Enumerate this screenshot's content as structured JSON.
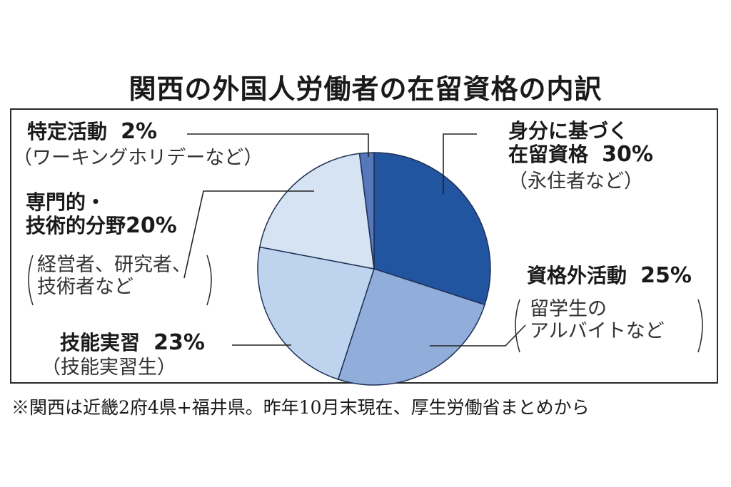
{
  "chart_data": {
    "type": "pie",
    "title": "関西の外国人労働者の在留資格の内訳",
    "unit": "%",
    "slices": [
      {
        "name": "身分に基づく在留資格",
        "label_lines": [
          "身分に基づく",
          "在留資格"
        ],
        "value": 30,
        "value_label": "30%",
        "sub_lines": [
          "（永住者など）"
        ],
        "color": "#2255a0"
      },
      {
        "name": "資格外活動",
        "label_lines": [
          "資格外活動"
        ],
        "value": 25,
        "value_label": "25%",
        "sub_lines": [
          "留学生の",
          "アルバイトなど"
        ],
        "color": "#91aedb"
      },
      {
        "name": "技能実習",
        "label_lines": [
          "技能実習"
        ],
        "value": 23,
        "value_label": "23%",
        "sub_lines": [
          "（技能実習生）"
        ],
        "color": "#bdd3ee"
      },
      {
        "name": "専門的・技術的分野",
        "label_lines": [
          "専門的・",
          "技術的分野"
        ],
        "value": 20,
        "value_label": "20%",
        "sub_lines": [
          "経営者、研究者、",
          "技術者など"
        ],
        "color": "#d6e3f3"
      },
      {
        "name": "特定活動",
        "label_lines": [
          "特定活動"
        ],
        "value": 2,
        "value_label": "2%",
        "sub_lines": [
          "（ワーキングホリデーなど）"
        ],
        "color": "#5577bb"
      }
    ],
    "start_angle": "12 o'clock",
    "direction": "clockwise"
  },
  "footnote": "※関西は近畿2府4県+福井県。昨年10月末現在、厚生労働省まとめから"
}
